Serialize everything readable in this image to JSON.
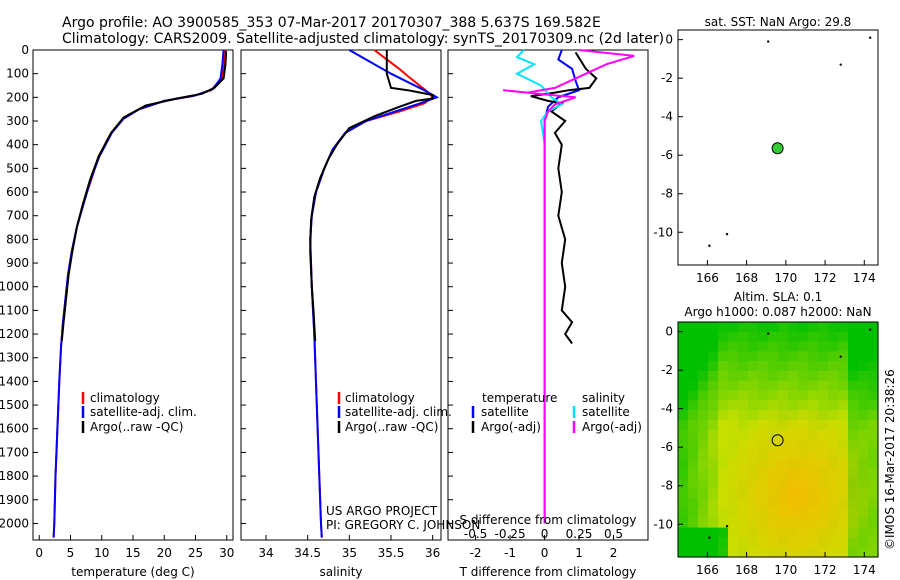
{
  "header": {
    "line1": "Argo profile: AO 3900585_353 07-Mar-2017 20170307_388 5.637S 169.582E",
    "line2": "Climatology: CARS2009. Satellite-adjusted climatology: synTS_20170309.nc (2d later)"
  },
  "colors": {
    "climatology": "#ff0000",
    "satellite": "#0000ff",
    "argo": "#000000",
    "salinity_satellite": "#00e5ff",
    "salinity_argo": "#ff00ff",
    "float_marker": "#33cc33"
  },
  "footer": {
    "project": "US ARGO PROJECT",
    "pi": "PI: GREGORY C. JOHNSON",
    "stamp": "©IMOS 16-Mar-2017 20:38:26"
  },
  "chart_data": [
    {
      "type": "line",
      "id": "temperature",
      "xlabel": "temperature (deg C)",
      "ylabel": "",
      "xlim": [
        -1,
        31
      ],
      "ylim": [
        2070,
        0
      ],
      "xticks": [
        0,
        5,
        10,
        15,
        20,
        25,
        30
      ],
      "yticks": [
        0,
        100,
        200,
        300,
        400,
        500,
        600,
        700,
        800,
        900,
        1000,
        1100,
        1200,
        1300,
        1400,
        1500,
        1600,
        1700,
        1800,
        1900,
        2000
      ],
      "legend": [
        "climatology",
        "satellite-adj. clim.",
        "Argo(..raw -QC)"
      ],
      "series": [
        {
          "name": "climatology",
          "points": [
            [
              29.8,
              0
            ],
            [
              29.6,
              60
            ],
            [
              29.2,
              120
            ],
            [
              27.5,
              170
            ],
            [
              24.5,
              195
            ],
            [
              20,
              215
            ],
            [
              16,
              250
            ],
            [
              13.5,
              290
            ],
            [
              11.5,
              350
            ],
            [
              9.5,
              450
            ],
            [
              8.3,
              550
            ],
            [
              7,
              650
            ],
            [
              6,
              750
            ],
            [
              5.2,
              850
            ],
            [
              4.6,
              950
            ],
            [
              4.2,
              1050
            ],
            [
              3.8,
              1150
            ],
            [
              3.5,
              1250
            ],
            [
              3.2,
              1400
            ],
            [
              2.9,
              1600
            ],
            [
              2.6,
              1800
            ],
            [
              2.4,
              2000
            ],
            [
              2.3,
              2060
            ]
          ]
        },
        {
          "name": "satellite-adj. clim.",
          "points": [
            [
              29.5,
              0
            ],
            [
              29.3,
              60
            ],
            [
              29,
              120
            ],
            [
              27.8,
              165
            ],
            [
              25,
              192
            ],
            [
              20,
              215
            ],
            [
              16,
              250
            ],
            [
              13.5,
              290
            ],
            [
              11.6,
              350
            ],
            [
              9.6,
              450
            ],
            [
              8.2,
              550
            ],
            [
              7.1,
              650
            ],
            [
              6,
              750
            ],
            [
              5.2,
              850
            ],
            [
              4.6,
              950
            ],
            [
              4.2,
              1050
            ],
            [
              3.8,
              1150
            ],
            [
              3.5,
              1250
            ],
            [
              3.2,
              1400
            ],
            [
              2.9,
              1600
            ],
            [
              2.6,
              1800
            ],
            [
              2.4,
              2000
            ],
            [
              2.3,
              2060
            ]
          ]
        },
        {
          "name": "Argo(..raw -QC)",
          "points": [
            [
              29.9,
              5
            ],
            [
              29.8,
              60
            ],
            [
              29.5,
              120
            ],
            [
              28,
              160
            ],
            [
              26,
              185
            ],
            [
              22,
              205
            ],
            [
              17,
              235
            ],
            [
              13.5,
              285
            ],
            [
              11.5,
              350
            ],
            [
              9.5,
              450
            ],
            [
              8.1,
              550
            ],
            [
              7,
              650
            ],
            [
              6,
              750
            ],
            [
              5.3,
              850
            ],
            [
              4.7,
              950
            ],
            [
              4.3,
              1050
            ],
            [
              3.9,
              1150
            ],
            [
              3.6,
              1230
            ]
          ]
        }
      ]
    },
    {
      "type": "line",
      "id": "salinity",
      "xlabel": "salinity",
      "ylabel": "",
      "xlim": [
        33.7,
        36.1
      ],
      "ylim": [
        2070,
        0
      ],
      "xticks": [
        34,
        34.5,
        35,
        35.5,
        36
      ],
      "legend": [
        "climatology",
        "satellite-adj. clim.",
        "Argo(..raw -QC)"
      ],
      "series": [
        {
          "name": "climatology",
          "points": [
            [
              35.3,
              0
            ],
            [
              35.6,
              80
            ],
            [
              35.7,
              110
            ],
            [
              35.95,
              180
            ],
            [
              36.0,
              200
            ],
            [
              35.9,
              225
            ],
            [
              35.6,
              260
            ],
            [
              35.2,
              300
            ],
            [
              34.95,
              350
            ],
            [
              34.8,
              420
            ],
            [
              34.7,
              500
            ],
            [
              34.6,
              600
            ],
            [
              34.55,
              700
            ],
            [
              34.53,
              800
            ],
            [
              34.55,
              1000
            ],
            [
              34.58,
              1200
            ],
            [
              34.61,
              1500
            ],
            [
              34.64,
              1800
            ],
            [
              34.66,
              2000
            ],
            [
              34.67,
              2060
            ]
          ]
        },
        {
          "name": "satellite-adj. clim.",
          "points": [
            [
              35.0,
              0
            ],
            [
              35.2,
              40
            ],
            [
              35.5,
              100
            ],
            [
              35.9,
              170
            ],
            [
              36.05,
              200
            ],
            [
              35.85,
              225
            ],
            [
              35.55,
              260
            ],
            [
              35.2,
              300
            ],
            [
              34.95,
              350
            ],
            [
              34.8,
              420
            ],
            [
              34.7,
              500
            ],
            [
              34.6,
              600
            ],
            [
              34.55,
              700
            ],
            [
              34.53,
              800
            ],
            [
              34.55,
              1000
            ],
            [
              34.58,
              1200
            ],
            [
              34.61,
              1500
            ],
            [
              34.64,
              1800
            ],
            [
              34.66,
              2000
            ],
            [
              34.67,
              2060
            ]
          ]
        },
        {
          "name": "Argo(..raw -QC)",
          "points": [
            [
              35.45,
              0
            ],
            [
              35.45,
              100
            ],
            [
              35.5,
              160
            ],
            [
              35.7,
              170
            ],
            [
              36.0,
              190
            ],
            [
              36.0,
              205
            ],
            [
              35.8,
              215
            ],
            [
              35.6,
              240
            ],
            [
              35.3,
              280
            ],
            [
              35.0,
              330
            ],
            [
              34.85,
              400
            ],
            [
              34.75,
              460
            ],
            [
              34.65,
              540
            ],
            [
              34.58,
              620
            ],
            [
              34.54,
              720
            ],
            [
              34.53,
              850
            ],
            [
              34.55,
              1000
            ],
            [
              34.57,
              1100
            ],
            [
              34.59,
              1230
            ]
          ]
        }
      ]
    },
    {
      "type": "line",
      "id": "difference",
      "xlabel": "T difference from climatology",
      "xlabel_top": "S difference from climatology",
      "xlim": [
        -2.8,
        3.0
      ],
      "ylim": [
        2070,
        0
      ],
      "xticks": [
        -2,
        -1,
        0,
        1,
        2
      ],
      "top_xticks": [
        "-0.5",
        "-0.25",
        "0",
        "0.25",
        "0.5"
      ],
      "legend_titles": [
        "temperature",
        "salinity"
      ],
      "legend": [
        "satellite",
        "Argo(-adj)",
        "satellite",
        "Argo(-adj)"
      ],
      "series": [
        {
          "name": "satellite",
          "variable": "temperature",
          "points": [
            [
              0.5,
              0
            ],
            [
              0.4,
              40
            ],
            [
              0.8,
              80
            ],
            [
              0.9,
              130
            ],
            [
              1.0,
              170
            ],
            [
              0.4,
              200
            ],
            [
              0.1,
              240
            ],
            [
              0.0,
              300
            ],
            [
              0.0,
              400
            ],
            [
              0.0,
              600
            ],
            [
              0.0,
              1000
            ],
            [
              0.0,
              1400
            ],
            [
              0.0,
              2000
            ]
          ]
        },
        {
          "name": "Argo(-adj)",
          "variable": "temperature",
          "points": [
            [
              0.9,
              10
            ],
            [
              1.2,
              80
            ],
            [
              1.5,
              120
            ],
            [
              1.3,
              160
            ],
            [
              0.7,
              170
            ],
            [
              0.3,
              180
            ],
            [
              -0.4,
              195
            ],
            [
              0.1,
              215
            ],
            [
              0.5,
              225
            ],
            [
              0.2,
              260
            ],
            [
              0.6,
              300
            ],
            [
              0.3,
              350
            ],
            [
              0.5,
              400
            ],
            [
              0.4,
              500
            ],
            [
              0.5,
              600
            ],
            [
              0.4,
              700
            ],
            [
              0.6,
              800
            ],
            [
              0.5,
              900
            ],
            [
              0.6,
              1000
            ],
            [
              0.5,
              1100
            ],
            [
              0.8,
              1150
            ],
            [
              0.6,
              1200
            ],
            [
              0.8,
              1240
            ]
          ]
        },
        {
          "name": "satellite",
          "variable": "salinity",
          "points": [
            [
              -0.6,
              0
            ],
            [
              -0.8,
              30
            ],
            [
              -0.3,
              60
            ],
            [
              -0.8,
              100
            ],
            [
              -0.1,
              150
            ],
            [
              0.2,
              200
            ],
            [
              0.5,
              230
            ],
            [
              0.1,
              260
            ],
            [
              -0.1,
              300
            ],
            [
              0.0,
              400
            ],
            [
              0.0,
              600
            ],
            [
              0.0,
              1000
            ],
            [
              0.0,
              1400
            ],
            [
              0.0,
              2000
            ]
          ]
        },
        {
          "name": "Argo(-adj)",
          "variable": "salinity",
          "points": [
            [
              1.0,
              0
            ],
            [
              2.6,
              25
            ],
            [
              1.8,
              60
            ],
            [
              1.2,
              100
            ],
            [
              0.3,
              160
            ],
            [
              -0.5,
              180
            ],
            [
              -1.2,
              170
            ],
            [
              -0.2,
              185
            ],
            [
              0.9,
              200
            ],
            [
              0.3,
              230
            ],
            [
              0.1,
              260
            ],
            [
              0.0,
              300
            ],
            [
              0.0,
              400
            ],
            [
              0.0,
              600
            ],
            [
              0.0,
              1000
            ],
            [
              0.0,
              1400
            ],
            [
              0.0,
              2000
            ]
          ]
        }
      ]
    },
    {
      "type": "scatter",
      "id": "sst_map",
      "title": "sat. SST: NaN Argo: 29.8",
      "xlim": [
        164.5,
        174.7
      ],
      "ylim": [
        -11.7,
        0.5
      ],
      "xticks": [
        166,
        168,
        170,
        172,
        174
      ],
      "yticks": [
        0,
        -2,
        -4,
        -6,
        -8,
        -10
      ],
      "float_position": {
        "lon": 169.58,
        "lat": -5.64
      }
    },
    {
      "type": "heatmap",
      "id": "sla_map",
      "title": "Altim. SLA: 0.1",
      "subtitle": "Argo h1000: 0.087 h2000: NaN",
      "xlim": [
        164.5,
        174.7
      ],
      "ylim": [
        -11.7,
        0.5
      ],
      "xticks": [
        166,
        168,
        170,
        172,
        174
      ],
      "yticks": [
        0,
        -2,
        -4,
        -6,
        -8,
        -10
      ],
      "float_position": {
        "lon": 169.58,
        "lat": -5.64
      },
      "colors": {
        "high": "#00c000",
        "mid": "#c8e000",
        "low": "#ffb400"
      }
    }
  ]
}
